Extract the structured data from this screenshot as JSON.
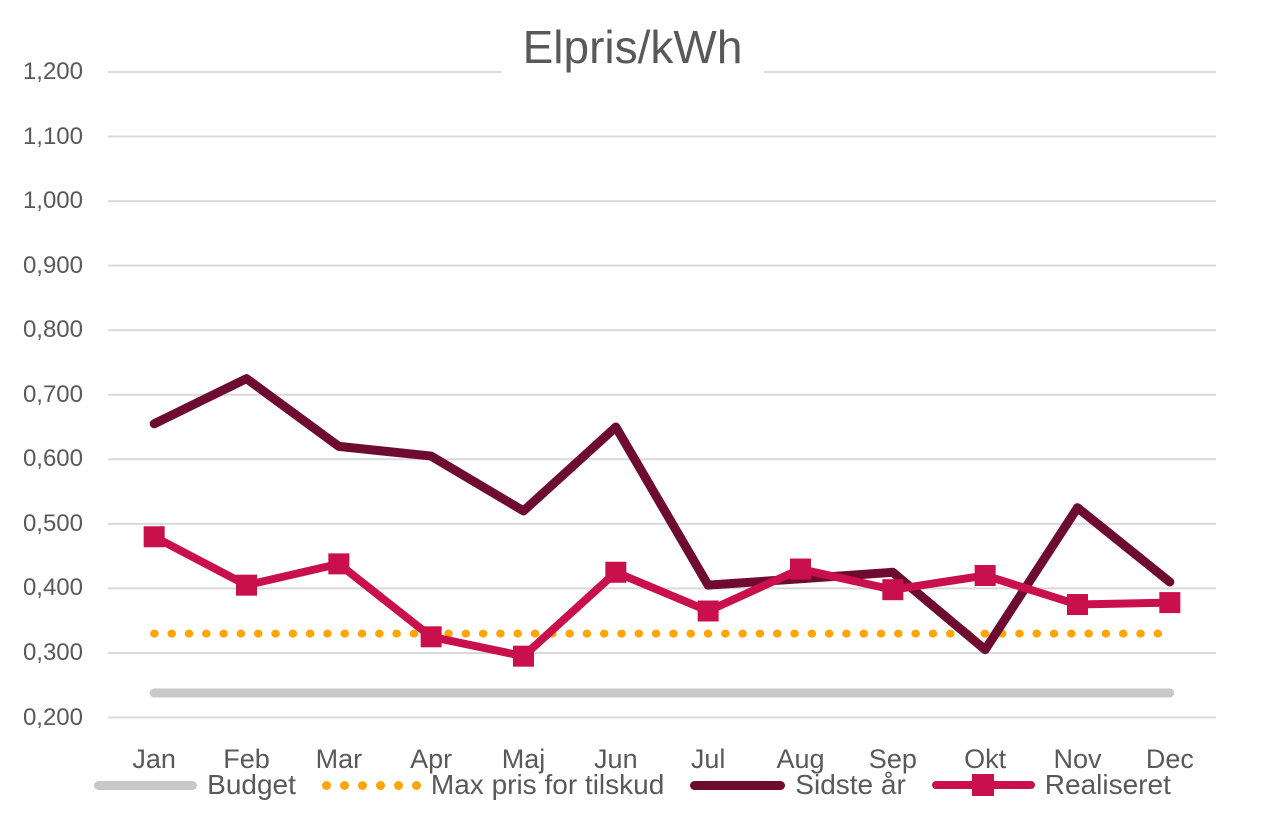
{
  "title": "Elpris/kWh",
  "colors": {
    "text": "#595959",
    "gridline": "#D9D9D9",
    "background": "#FFFFFF",
    "budget": "#C8C8C8",
    "max_pris": "#FFA505",
    "sidste_ar": "#6E0B31",
    "realiseret": "#C9104C"
  },
  "chart_data": {
    "type": "line",
    "title": "Elpris/kWh",
    "categories": [
      "Jan",
      "Feb",
      "Mar",
      "Apr",
      "Maj",
      "Jun",
      "Jul",
      "Aug",
      "Sep",
      "Okt",
      "Nov",
      "Dec"
    ],
    "y_axis": {
      "min": 0.2,
      "max": 1.2,
      "step": 0.1,
      "number_format": "comma-decimal",
      "tick_labels": [
        "1,200",
        "1,100",
        "1,000",
        "0,900",
        "0,800",
        "0,700",
        "0,600",
        "0,500",
        "0,400",
        "0,300",
        "0,200"
      ]
    },
    "grid": true,
    "legend_position": "bottom",
    "series": [
      {
        "name": "Budget",
        "color": "#C8C8C8",
        "line_style": "solid",
        "line_width": 9,
        "marker": "none",
        "values": [
          0.238,
          0.238,
          0.238,
          0.238,
          0.238,
          0.238,
          0.238,
          0.238,
          0.238,
          0.238,
          0.238,
          0.238
        ]
      },
      {
        "name": "Max pris for tilskud",
        "color": "#FFA505",
        "line_style": "dotted",
        "line_width": 8,
        "marker": "none",
        "values": [
          0.33,
          0.33,
          0.33,
          0.33,
          0.33,
          0.33,
          0.33,
          0.33,
          0.33,
          0.33,
          0.33,
          0.33
        ]
      },
      {
        "name": "Sidste år",
        "color": "#6E0B31",
        "line_style": "solid",
        "line_width": 9,
        "marker": "none",
        "values": [
          0.655,
          0.725,
          0.62,
          0.605,
          0.52,
          0.65,
          0.405,
          0.415,
          0.425,
          0.305,
          0.525,
          0.41
        ]
      },
      {
        "name": "Realiseret",
        "color": "#C9104C",
        "line_style": "solid",
        "line_width": 8,
        "marker": "square",
        "marker_size": 21,
        "values": [
          0.48,
          0.405,
          0.438,
          0.325,
          0.295,
          0.425,
          0.365,
          0.43,
          0.398,
          0.42,
          0.375,
          0.378
        ]
      }
    ]
  }
}
